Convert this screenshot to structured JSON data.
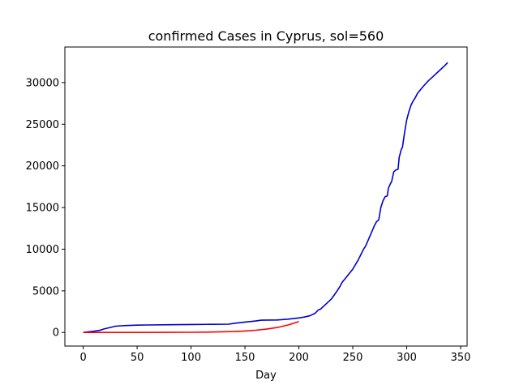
{
  "chart_data": {
    "type": "line",
    "title": "confirmed Cases in Cyprus, sol=560",
    "xlabel": "Day",
    "ylabel": "",
    "xlim": [
      -17,
      356
    ],
    "ylim": [
      -1630,
      34270
    ],
    "xticks": [
      0,
      50,
      100,
      150,
      200,
      250,
      300,
      350
    ],
    "yticks": [
      0,
      5000,
      10000,
      15000,
      20000,
      25000,
      30000
    ],
    "grid": false,
    "series": [
      {
        "color": "#0000cc",
        "x": [
          0,
          10,
          15,
          20,
          25,
          30,
          35,
          40,
          50,
          60,
          80,
          100,
          120,
          135,
          140,
          150,
          160,
          165,
          180,
          190,
          200,
          205,
          210,
          215,
          218,
          220,
          225,
          230,
          235,
          238,
          240,
          245,
          250,
          255,
          260,
          262,
          265,
          270,
          272,
          274,
          276,
          278,
          280,
          282,
          283,
          285,
          286,
          288,
          290,
          292,
          293,
          295,
          296,
          298,
          300,
          302,
          304,
          306,
          308,
          310,
          315,
          320,
          325,
          330,
          335,
          338
        ],
        "y": [
          0,
          150,
          250,
          450,
          600,
          750,
          800,
          830,
          880,
          900,
          930,
          960,
          980,
          1000,
          1100,
          1250,
          1380,
          1470,
          1500,
          1600,
          1750,
          1850,
          2000,
          2300,
          2700,
          2800,
          3400,
          4000,
          4900,
          5500,
          6000,
          6800,
          7600,
          8700,
          10000,
          10400,
          11300,
          12800,
          13300,
          13500,
          15000,
          15800,
          16300,
          16400,
          17300,
          17900,
          18100,
          19300,
          19500,
          19600,
          21000,
          22000,
          22200,
          24000,
          25500,
          26500,
          27300,
          27800,
          28200,
          28700,
          29500,
          30200,
          30800,
          31400,
          32000,
          32400
        ]
      },
      {
        "color": "#ff0000",
        "x": [
          0,
          20,
          40,
          60,
          80,
          100,
          120,
          140,
          150,
          160,
          170,
          180,
          190,
          200
        ],
        "y": [
          0,
          2,
          4,
          7,
          14,
          28,
          55,
          115,
          175,
          265,
          400,
          600,
          900,
          1320
        ]
      }
    ]
  }
}
